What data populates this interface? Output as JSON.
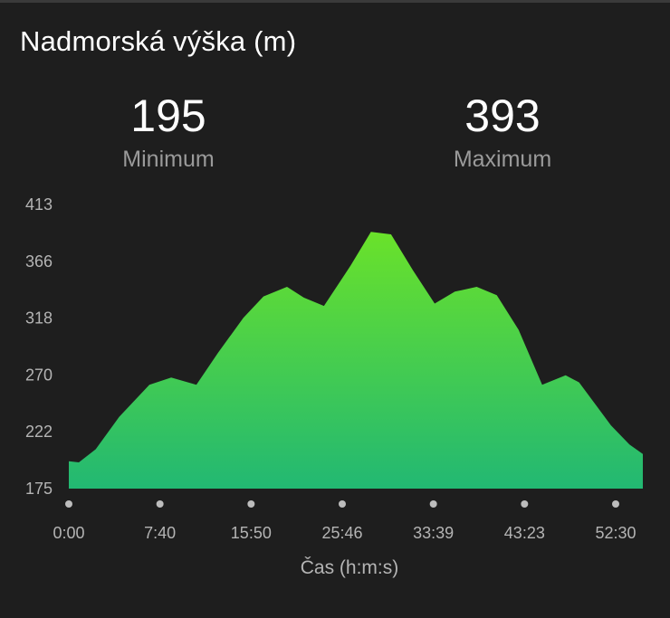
{
  "header": {
    "title": "Nadmorská výška (m)"
  },
  "stats": {
    "min_value": "195",
    "min_label": "Minimum",
    "max_value": "393",
    "max_label": "Maximum"
  },
  "colors": {
    "background": "#1e1e1e",
    "area_top": "#6ae22a",
    "area_bottom": "#22b873",
    "tick_text": "#b4b4b4",
    "dot": "#bdbdbd"
  },
  "chart_data": {
    "type": "area",
    "title": "Nadmorská výška (m)",
    "xlabel": "Čas (h:m:s)",
    "ylabel": "",
    "ylim": [
      175,
      413
    ],
    "xlim": [
      0,
      3420
    ],
    "yticks": [
      "413",
      "366",
      "318",
      "270",
      "222",
      "175"
    ],
    "xticks": [
      "0:00",
      "7:40",
      "15:50",
      "25:46",
      "33:39",
      "43:23",
      "52:30"
    ],
    "x": [
      0,
      60,
      160,
      300,
      480,
      610,
      760,
      890,
      1040,
      1160,
      1300,
      1400,
      1520,
      1680,
      1800,
      1920,
      2050,
      2180,
      2300,
      2430,
      2550,
      2680,
      2820,
      2960,
      3040,
      3130,
      3230,
      3340,
      3420
    ],
    "values": [
      198,
      197,
      208,
      235,
      262,
      268,
      262,
      289,
      318,
      336,
      344,
      335,
      328,
      362,
      390,
      388,
      358,
      330,
      340,
      344,
      337,
      308,
      262,
      270,
      264,
      247,
      228,
      212,
      204
    ]
  }
}
